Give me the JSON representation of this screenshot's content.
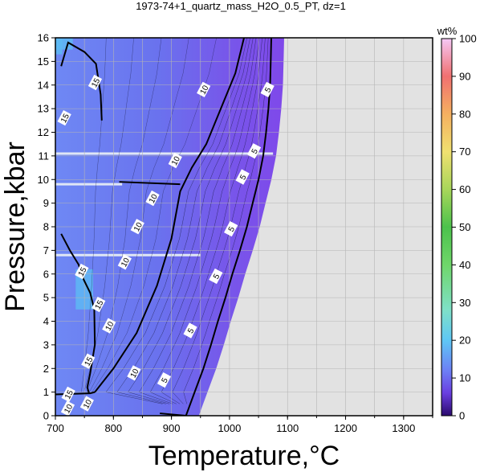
{
  "chart_data": {
    "type": "heatmap",
    "title": "1973-74+1_quartz_mass_H2O_0.5_PT, dz=1",
    "xlabel": "Temperature,°C",
    "ylabel": "Pressure,kbar",
    "xlim": [
      700,
      1350
    ],
    "ylim": [
      0,
      16
    ],
    "x_ticks": [
      "700",
      "800",
      "900",
      "1000",
      "1100",
      "1200",
      "1300"
    ],
    "y_ticks": [
      "0",
      "1",
      "2",
      "3",
      "4",
      "5",
      "6",
      "7",
      "8",
      "9",
      "10",
      "11",
      "12",
      "13",
      "14",
      "15",
      "16"
    ],
    "grid": true,
    "colorbar": {
      "label": "wt%",
      "range": [
        0,
        100
      ],
      "ticks": [
        "0",
        "10",
        "20",
        "30",
        "40",
        "50",
        "60",
        "70",
        "80",
        "90",
        "100"
      ],
      "stops": [
        {
          "value": 0,
          "color": "#2b0a6e"
        },
        {
          "value": 6,
          "color": "#6a3fe0"
        },
        {
          "value": 12,
          "color": "#6d80f5"
        },
        {
          "value": 20,
          "color": "#5fc7f5"
        },
        {
          "value": 28,
          "color": "#7fe0c8"
        },
        {
          "value": 40,
          "color": "#6fd66a"
        },
        {
          "value": 50,
          "color": "#4cc24c"
        },
        {
          "value": 60,
          "color": "#a8d65a"
        },
        {
          "value": 70,
          "color": "#f0e070"
        },
        {
          "value": 80,
          "color": "#f5b060"
        },
        {
          "value": 90,
          "color": "#f07070"
        },
        {
          "value": 100,
          "color": "#f5c8f5"
        }
      ]
    },
    "no_data_color": "#e2e2e2",
    "contours": [
      {
        "value": 5,
        "points": [
          [
            925,
            0
          ],
          [
            940,
            1
          ],
          [
            955,
            2
          ],
          [
            968,
            3
          ],
          [
            980,
            4
          ],
          [
            993,
            5
          ],
          [
            1005,
            6
          ],
          [
            1018,
            7
          ],
          [
            1030,
            8
          ],
          [
            1040,
            9
          ],
          [
            1050,
            10
          ],
          [
            1058,
            11
          ],
          [
            1063,
            12
          ],
          [
            1067,
            13
          ],
          [
            1070,
            14
          ],
          [
            1071,
            15
          ],
          [
            1072,
            16
          ]
        ],
        "labels": [
          [
            888,
            1.5
          ],
          [
            933,
            3.6
          ],
          [
            977,
            5.9
          ],
          [
            1003,
            7.9
          ],
          [
            1023,
            10.1
          ],
          [
            1043,
            11.2
          ],
          [
            1066,
            13.8
          ]
        ],
        "label_text": "5"
      },
      {
        "value": 10,
        "points": [
          [
            768,
            1
          ],
          [
            800,
            2
          ],
          [
            840,
            3.5
          ],
          [
            875,
            5.5
          ],
          [
            900,
            7.5
          ],
          [
            915,
            9.5
          ],
          [
            935,
            10.5
          ],
          [
            960,
            11.5
          ],
          [
            985,
            13
          ],
          [
            1010,
            14.5
          ],
          [
            1025,
            16
          ]
        ],
        "labels": [
          [
            793,
            3.8
          ],
          [
            820,
            6.5
          ],
          [
            842,
            8.0
          ],
          [
            868,
            9.2
          ],
          [
            907,
            10.8
          ],
          [
            956,
            13.8
          ],
          [
            836,
            1.8
          ],
          [
            755,
            0.5
          ],
          [
            722,
            0.3
          ]
        ],
        "label_text": "10"
      },
      {
        "value": 15,
        "points": [
          [
            710,
            14.8
          ],
          [
            722,
            15.8
          ],
          [
            750,
            15.4
          ],
          [
            770,
            14.9
          ],
          [
            778,
            13.6
          ],
          [
            780,
            12.5
          ]
        ],
        "labels": [
          [
            769,
            14.1
          ],
          [
            716,
            12.6
          ],
          [
            746,
            6.1
          ],
          [
            775,
            4.7
          ],
          [
            757,
            2.3
          ],
          [
            723,
            0.9
          ]
        ],
        "label_text": "15"
      }
    ],
    "annotations": [
      "5",
      "10",
      "15"
    ]
  }
}
